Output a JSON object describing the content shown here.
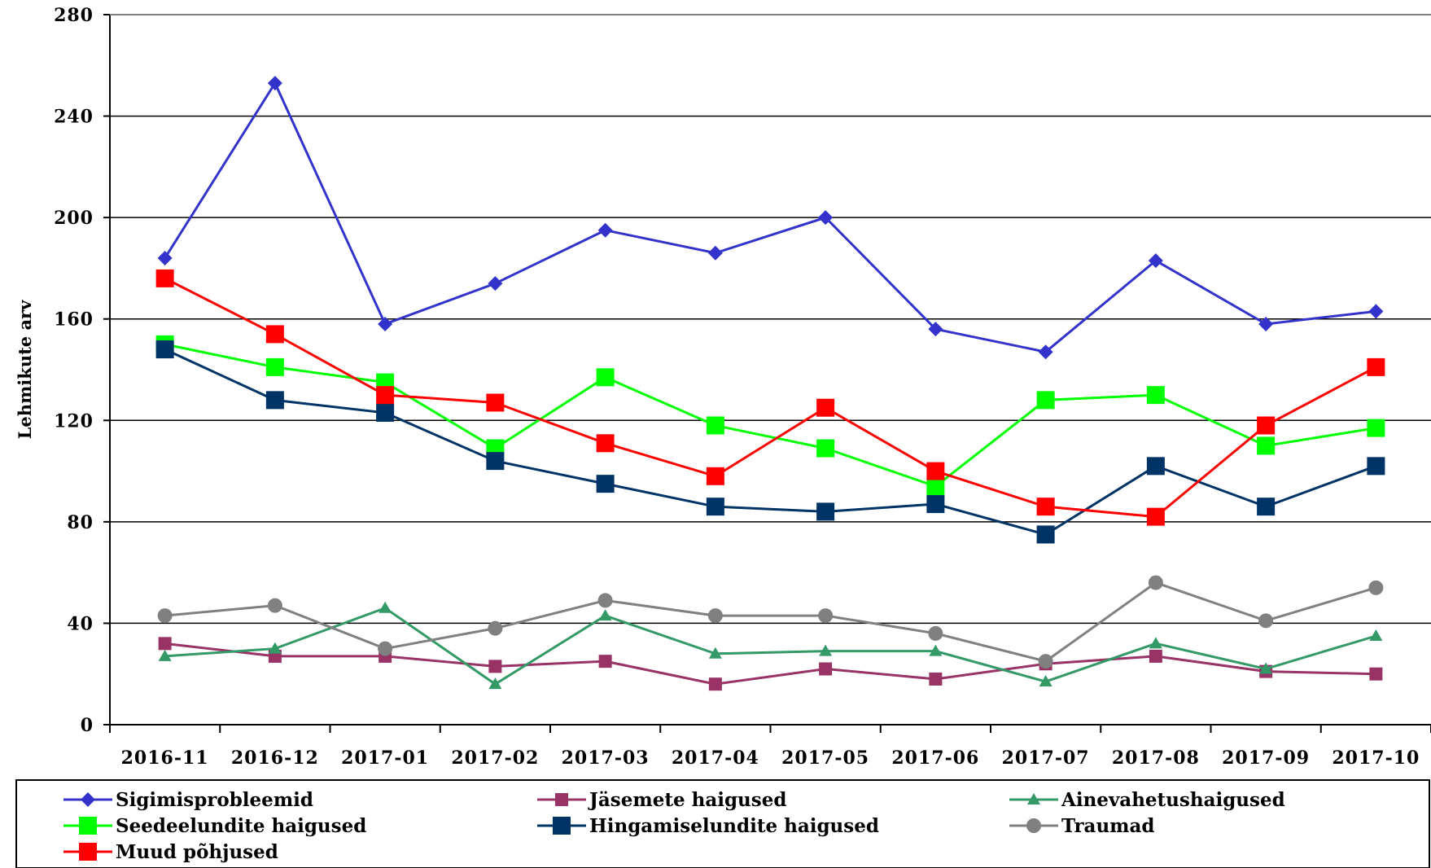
{
  "chart_data": {
    "type": "line",
    "ylabel": "Lehmikute arv",
    "xlabel": "",
    "ylim": [
      0,
      280
    ],
    "yticks": [
      0,
      40,
      80,
      120,
      160,
      200,
      240,
      280
    ],
    "grid": "horizontal",
    "legend_position": "bottom",
    "categories": [
      "2016-11",
      "2016-12",
      "2017-01",
      "2017-02",
      "2017-03",
      "2017-04",
      "2017-05",
      "2017-06",
      "2017-07",
      "2017-08",
      "2017-09",
      "2017-10"
    ],
    "series": [
      {
        "name": "Sigimisprobleemid",
        "color": "#3333CC",
        "marker": "diamond",
        "values": [
          184,
          253,
          158,
          174,
          195,
          186,
          200,
          156,
          147,
          183,
          158,
          163
        ]
      },
      {
        "name": "Jäsemete haigused",
        "color": "#993366",
        "marker": "square-small",
        "values": [
          32,
          27,
          27,
          23,
          25,
          16,
          22,
          18,
          24,
          27,
          21,
          20
        ]
      },
      {
        "name": "Ainevahetushaigused",
        "color": "#339966",
        "marker": "triangle",
        "values": [
          27,
          30,
          46,
          16,
          43,
          28,
          29,
          29,
          17,
          32,
          22,
          35
        ]
      },
      {
        "name": "Seedeelundite haigused",
        "color": "#00FF00",
        "marker": "square",
        "values": [
          150,
          141,
          135,
          109,
          137,
          118,
          109,
          94,
          128,
          130,
          110,
          117
        ]
      },
      {
        "name": "Hingamiselundite haigused",
        "color": "#003366",
        "marker": "square",
        "values": [
          148,
          128,
          123,
          104,
          95,
          86,
          84,
          87,
          75,
          102,
          86,
          102
        ]
      },
      {
        "name": "Traumad",
        "color": "#808080",
        "marker": "circle",
        "values": [
          43,
          47,
          30,
          38,
          49,
          43,
          43,
          36,
          25,
          56,
          41,
          54
        ]
      },
      {
        "name": "Muud põhjused",
        "color": "#FF0000",
        "marker": "square",
        "values": [
          176,
          154,
          130,
          127,
          111,
          98,
          125,
          100,
          86,
          82,
          118,
          141
        ]
      }
    ]
  }
}
